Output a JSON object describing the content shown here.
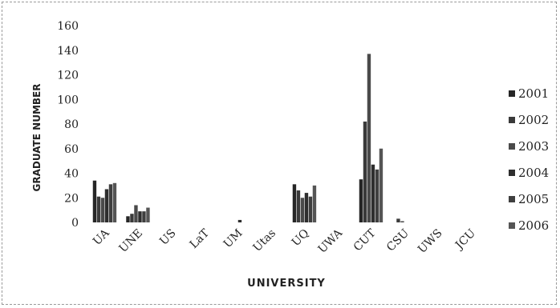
{
  "chart_data": {
    "type": "bar",
    "title": "",
    "xlabel": "UNIVERSITY",
    "ylabel": "GRADUATE NUMBER",
    "ylim": [
      0,
      160
    ],
    "yticks": [
      0,
      20,
      40,
      60,
      80,
      100,
      120,
      140,
      160
    ],
    "grid": false,
    "legend": "right",
    "categories": [
      "UA",
      "UNE",
      "US",
      "LaT",
      "UM",
      "Utas",
      "UQ",
      "UWA",
      "CUT",
      "CSU",
      "UWS",
      "JCU"
    ],
    "series": [
      {
        "name": "2001",
        "color": "#262626",
        "values": [
          34,
          5,
          0,
          0,
          0,
          0,
          31,
          0,
          35,
          0,
          0,
          0
        ]
      },
      {
        "name": "2002",
        "color": "#3a3a3a",
        "values": [
          21,
          7,
          0,
          0,
          0,
          0,
          26,
          0,
          82,
          3,
          0,
          0
        ]
      },
      {
        "name": "2003",
        "color": "#4a4a4a",
        "values": [
          20,
          14,
          0,
          0,
          0,
          0,
          20,
          0,
          137,
          1,
          0,
          0
        ]
      },
      {
        "name": "2004",
        "color": "#2e2e2e",
        "values": [
          27,
          9,
          0,
          0,
          2,
          0,
          24,
          0,
          47,
          0,
          0,
          0
        ]
      },
      {
        "name": "2005",
        "color": "#3f3f3f",
        "values": [
          31,
          9,
          0,
          0,
          0,
          0,
          21,
          0,
          43,
          0,
          0,
          0
        ]
      },
      {
        "name": "2006",
        "color": "#555555",
        "values": [
          32,
          12,
          0,
          0,
          0,
          0,
          30,
          0,
          60,
          0,
          0,
          0
        ]
      }
    ]
  }
}
